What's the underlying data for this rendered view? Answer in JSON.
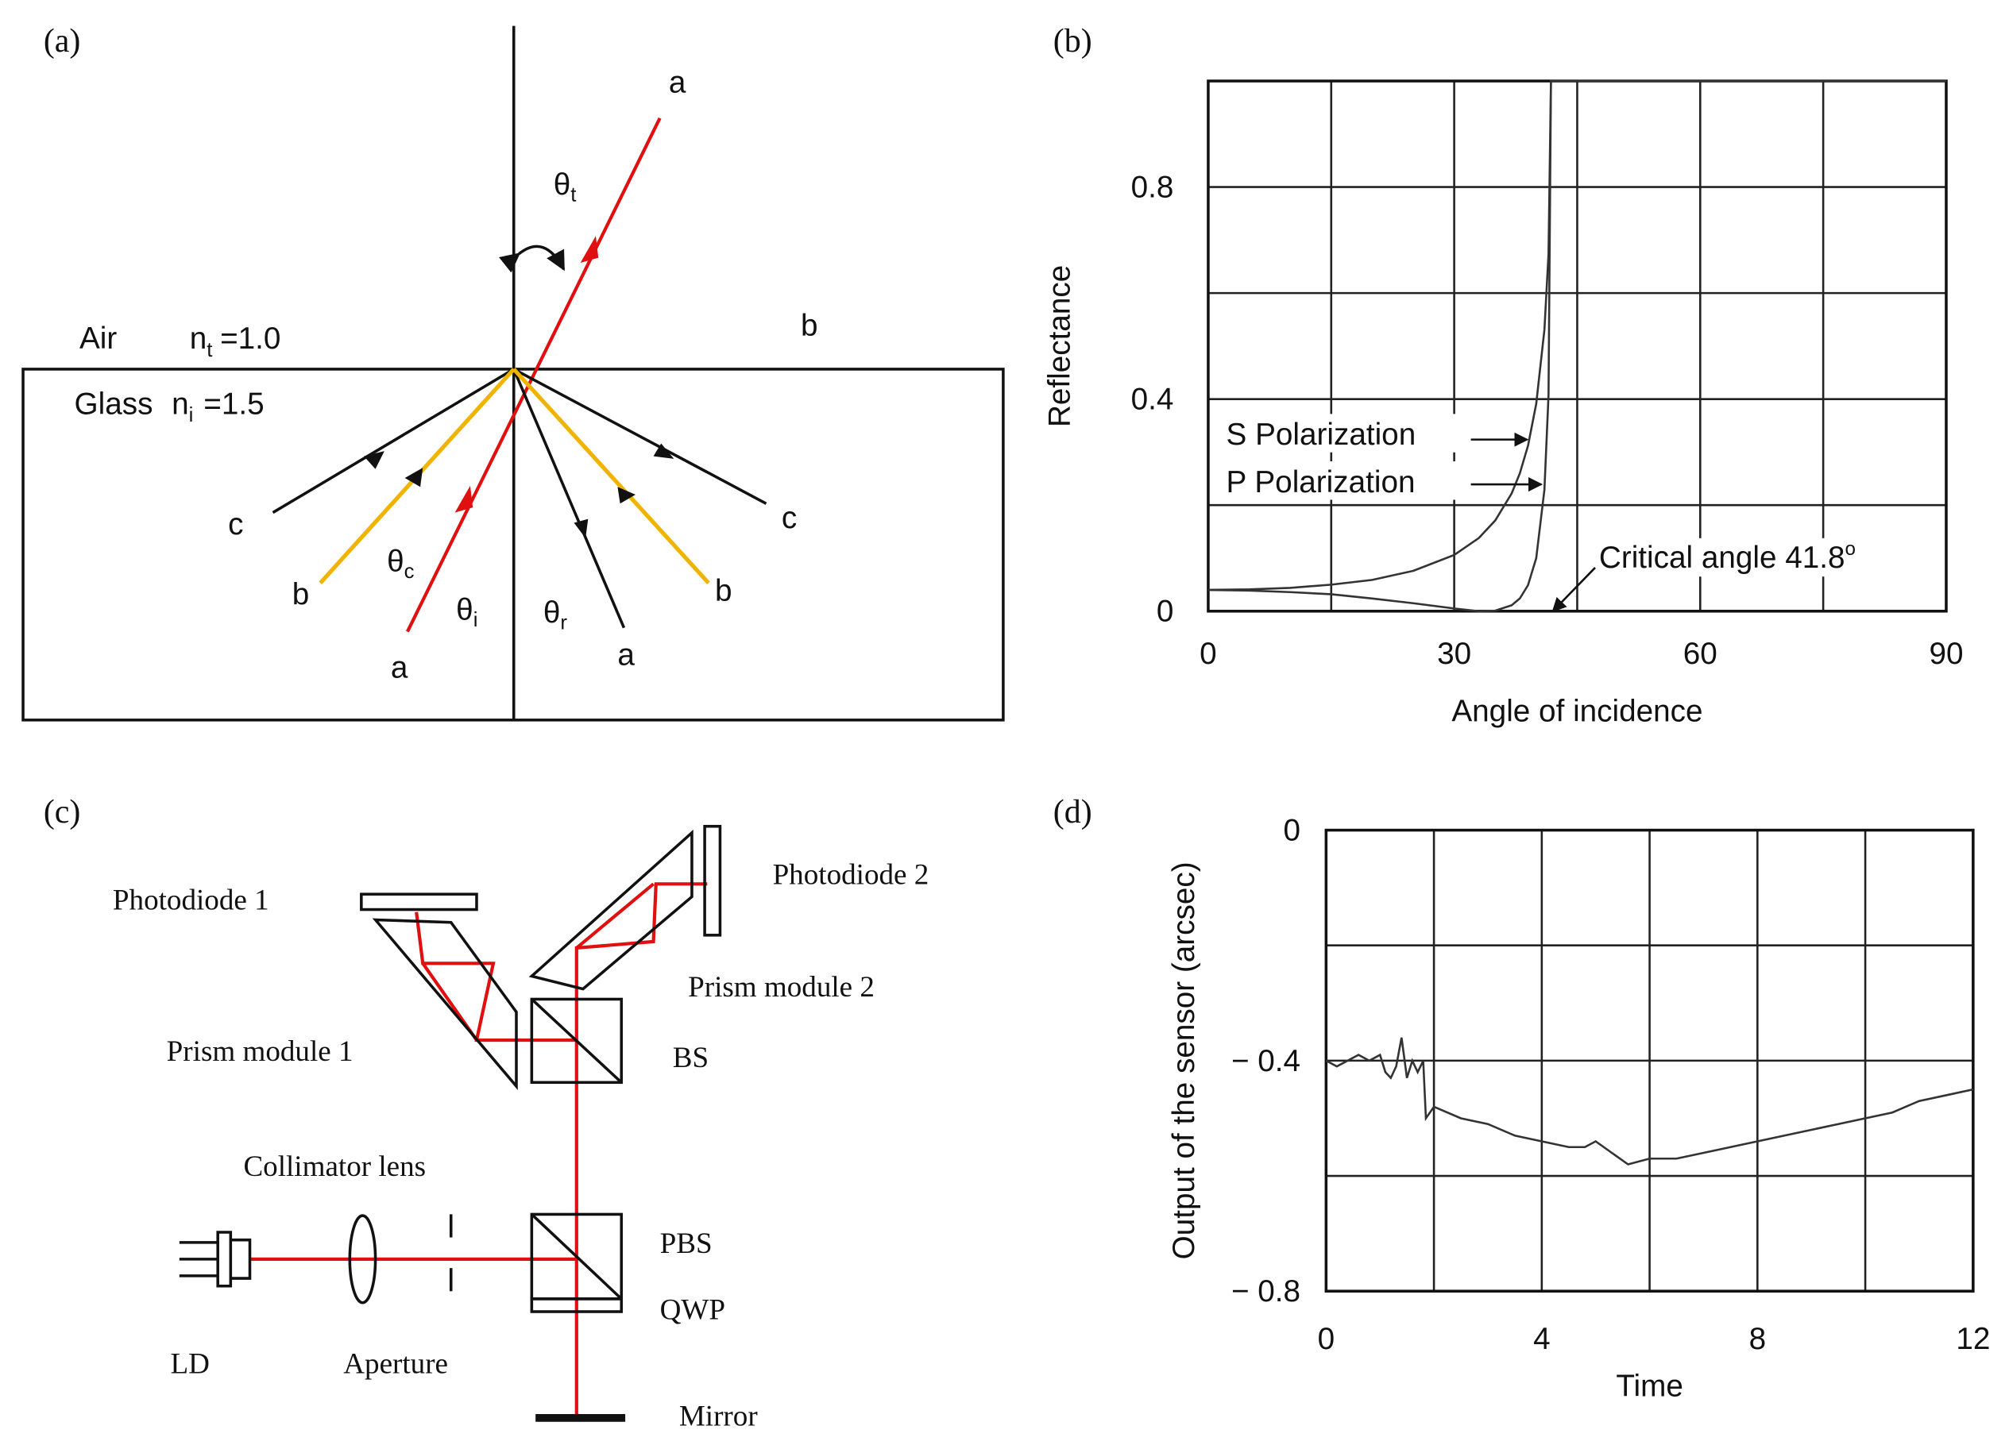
{
  "panel_a": {
    "label": "(a)",
    "air": {
      "medium": "Air",
      "symbol": "n",
      "sub": "t",
      "value": "=1.0"
    },
    "glass": {
      "medium": "Glass",
      "symbol": "n",
      "sub": "i",
      "value": "=1.5"
    },
    "theta_t": {
      "symbol": "θ",
      "sub": "t"
    },
    "theta_c": {
      "symbol": "θ",
      "sub": "c"
    },
    "theta_i": {
      "symbol": "θ",
      "sub": "i"
    },
    "theta_r": {
      "symbol": "θ",
      "sub": "r"
    },
    "rays": [
      "a",
      "b",
      "c",
      "c",
      "b",
      "b",
      "a",
      "a"
    ]
  },
  "panel_c": {
    "label": "(c)",
    "components": [
      "Photodiode 1",
      "Photodiode 2",
      "Prism module 2",
      "Prism module 1",
      "BS",
      "Collimator  lens",
      "PBS",
      "QWP",
      "LD",
      "Aperture",
      "Mirror"
    ]
  },
  "chart_data": [
    {
      "type": "line",
      "label": "(b)",
      "x_label": "Angle of incidence",
      "y_label": "Reflectance",
      "x": [
        0,
        5,
        10,
        15,
        20,
        25,
        30,
        33,
        35,
        37,
        38,
        39,
        40,
        41,
        41.5,
        41.8,
        90
      ],
      "series": [
        {
          "name": "S Polarization",
          "color": "#333333",
          "values": [
            0.04,
            0.041,
            0.044,
            0.05,
            0.059,
            0.076,
            0.106,
            0.138,
            0.171,
            0.222,
            0.26,
            0.312,
            0.391,
            0.531,
            0.674,
            1,
            1
          ]
        },
        {
          "name": "P Polarization",
          "color": "#333333",
          "values": [
            0.04,
            0.039,
            0.036,
            0.032,
            0.024,
            0.015,
            0.005,
            0,
            0.001,
            0.011,
            0.024,
            0.049,
            0.1,
            0.229,
            0.407,
            1,
            1
          ]
        }
      ],
      "annotation": {
        "text": "Critical angle 41.8",
        "sup": "o"
      },
      "xlim": [
        0,
        90
      ],
      "xticks": [
        0,
        30,
        60,
        90
      ],
      "x_minor_ticks": [
        15,
        45,
        75
      ],
      "ylim": [
        0,
        1
      ],
      "yticks": [
        0,
        0.4,
        0.8
      ],
      "y_minor_ticks": [
        0.2,
        0.6,
        1.0
      ],
      "grid": true
    },
    {
      "type": "line",
      "label": "(d)",
      "x_label": "Time",
      "y_label": "Output of the sensor  (arcsec)",
      "x": [
        0,
        0.2,
        0.4,
        0.6,
        0.8,
        1.0,
        1.1,
        1.2,
        1.3,
        1.4,
        1.5,
        1.6,
        1.7,
        1.8,
        1.85,
        2,
        2.5,
        3,
        3.5,
        4,
        4.5,
        4.8,
        5,
        5.3,
        5.6,
        6,
        6.5,
        7,
        7.5,
        8,
        8.5,
        9,
        9.5,
        10,
        10.5,
        11,
        11.5,
        12
      ],
      "series": [
        {
          "color": "#333333",
          "values": [
            -0.4,
            -0.41,
            -0.4,
            -0.39,
            -0.4,
            -0.39,
            -0.42,
            -0.43,
            -0.41,
            -0.36,
            -0.43,
            -0.4,
            -0.42,
            -0.4,
            -0.5,
            -0.48,
            -0.5,
            -0.51,
            -0.53,
            -0.54,
            -0.55,
            -0.55,
            -0.54,
            -0.56,
            -0.58,
            -0.57,
            -0.57,
            -0.56,
            -0.55,
            -0.54,
            -0.53,
            -0.52,
            -0.51,
            -0.5,
            -0.49,
            -0.47,
            -0.46,
            -0.45
          ]
        }
      ],
      "xlim": [
        0,
        12
      ],
      "xticks": [
        0,
        4,
        8,
        12
      ],
      "x_minor_ticks": [
        2,
        6,
        10
      ],
      "ylim": [
        -0.8,
        0
      ],
      "yticks": [
        0,
        {
          "value": -0.4,
          "label": "− 0.4"
        },
        {
          "value": -0.8,
          "label": "− 0.8"
        }
      ],
      "y_minor_ticks": [
        -0.2,
        -0.6
      ],
      "grid": true
    }
  ]
}
